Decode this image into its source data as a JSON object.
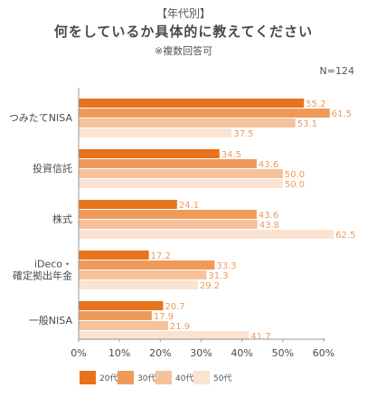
{
  "header": {
    "tag": "【年代別】",
    "title": "何をしているか具体的に教えてください",
    "note": "※複数回答可",
    "n": "N=124"
  },
  "colors": {
    "20代": "#e8731c",
    "30代": "#f09a5a",
    "40代": "#f6c29c",
    "50代": "#fbe3d2",
    "value_label": "#ee9a5e",
    "axis": "#999999",
    "grid": "#dddddd"
  },
  "chart_data": {
    "type": "bar",
    "orientation": "horizontal",
    "categories": [
      "つみたてNISA",
      "投資信託",
      "株式",
      "iDeco・確定拠出年金",
      "一般NISA"
    ],
    "category_lines": [
      [
        "つみたてNISA"
      ],
      [
        "投資信託"
      ],
      [
        "株式"
      ],
      [
        "iDeco・",
        "確定拠出年金"
      ],
      [
        "一般NISA"
      ]
    ],
    "series": [
      {
        "name": "20代",
        "values": [
          55.2,
          34.5,
          24.1,
          17.2,
          20.7
        ]
      },
      {
        "name": "30代",
        "values": [
          61.5,
          43.6,
          43.6,
          33.3,
          17.9
        ]
      },
      {
        "name": "40代",
        "values": [
          53.1,
          50.0,
          43.8,
          31.3,
          21.9
        ]
      },
      {
        "name": "50代",
        "values": [
          37.5,
          50.0,
          62.5,
          29.2,
          41.7
        ]
      }
    ],
    "value_labels": [
      [
        "55.2",
        "34.5",
        "24.1",
        "17.2",
        "20.7"
      ],
      [
        "61.5",
        "43.6",
        "43.6",
        "33.3",
        "17.9"
      ],
      [
        "53.1",
        "50.0",
        "43.8",
        "31.3",
        "21.9"
      ],
      [
        "37.5",
        "50.0",
        "62.5",
        "29.2",
        "41.7"
      ]
    ],
    "xlim": [
      0,
      60
    ],
    "ticks": [
      "0%",
      "10%",
      "20%",
      "30%",
      "40%",
      "50%",
      "60%"
    ],
    "legend_position": "bottom-left",
    "grid": false
  }
}
